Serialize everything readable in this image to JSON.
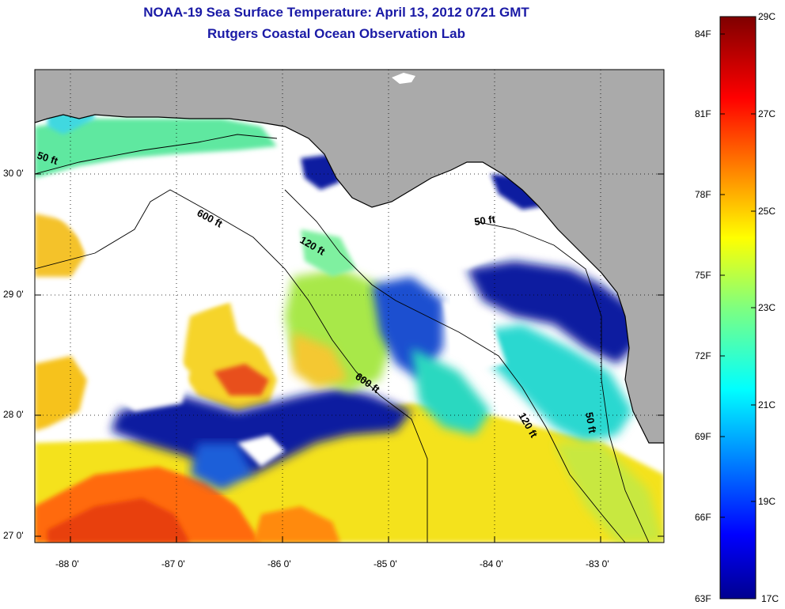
{
  "title": {
    "line1": "NOAA-19 Sea Surface Temperature:  April 13, 2012 0721 GMT",
    "line2": "Rutgers Coastal Ocean Observation Lab"
  },
  "map": {
    "lat_labels": [
      "30 0'",
      "29 0'",
      "28 0'",
      "27 0'"
    ],
    "lon_labels": [
      "-88 0'",
      "-87 0'",
      "-86 0'",
      "-85 0'",
      "-84 0'",
      "-83 0'"
    ],
    "contour_labels": [
      "50 ft",
      "600 ft",
      "120 ft",
      "50 ft",
      "600 ft",
      "120 ft",
      "50 ft"
    ],
    "colors": {
      "land": "#aaaaaa",
      "cloud": "#ffffff",
      "coast": "#000000"
    }
  },
  "colorbar": {
    "celsius_labels": [
      "29C",
      "27C",
      "25C",
      "23C",
      "21C",
      "19C",
      "17C"
    ],
    "fahrenheit_labels": [
      "84F",
      "81F",
      "78F",
      "75F",
      "72F",
      "69F",
      "66F",
      "63F"
    ],
    "range_c": [
      17,
      29
    ],
    "colormap": "jet"
  }
}
